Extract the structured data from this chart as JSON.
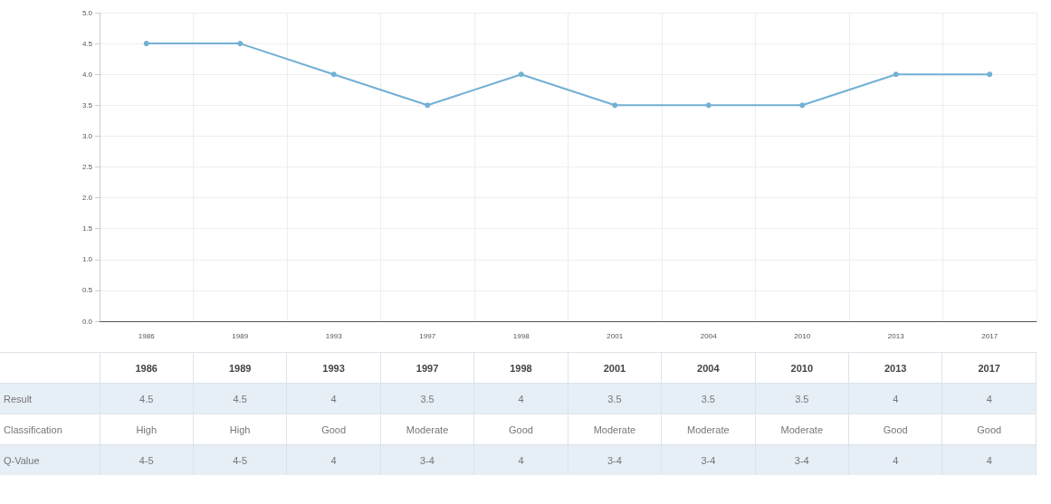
{
  "chart_data": {
    "type": "line",
    "categories": [
      "1986",
      "1989",
      "1993",
      "1997",
      "1998",
      "2001",
      "2004",
      "2010",
      "2013",
      "2017"
    ],
    "values": [
      4.5,
      4.5,
      4,
      3.5,
      4,
      3.5,
      3.5,
      3.5,
      4,
      4
    ],
    "value_labels": [
      "4.5",
      "4.5",
      "4",
      "3.5",
      "4",
      "3.5",
      "3.5",
      "3.5",
      "4",
      "4"
    ],
    "color": "#72b0d4",
    "ylim": [
      0,
      5
    ],
    "yticks": [
      {
        "value": 0,
        "label": "0.0"
      },
      {
        "value": 0.5,
        "label": "0.5"
      },
      {
        "value": 1,
        "label": "1.0"
      },
      {
        "value": 1.5,
        "label": "1.5"
      },
      {
        "value": 2,
        "label": "2.0"
      },
      {
        "value": 2.5,
        "label": "2.5"
      },
      {
        "value": 3,
        "label": "3.0"
      },
      {
        "value": 3.5,
        "label": "3.5"
      },
      {
        "value": 4,
        "label": "4.0"
      },
      {
        "value": 4.5,
        "label": "4.5"
      },
      {
        "value": 5,
        "label": "5.0"
      }
    ],
    "grid": true,
    "marker": "circle",
    "line_style": "solid",
    "annotations": [
      "Result",
      "Classification",
      "High",
      "High",
      "Good",
      "Moderate",
      "Good",
      "Moderate",
      "Moderate",
      "Moderate",
      "Good",
      "Good",
      "Q-Value",
      "4-5",
      "4-5",
      "4",
      "3-4",
      "4",
      "3-4",
      "3-4",
      "3-4",
      "4",
      "4"
    ]
  }
}
